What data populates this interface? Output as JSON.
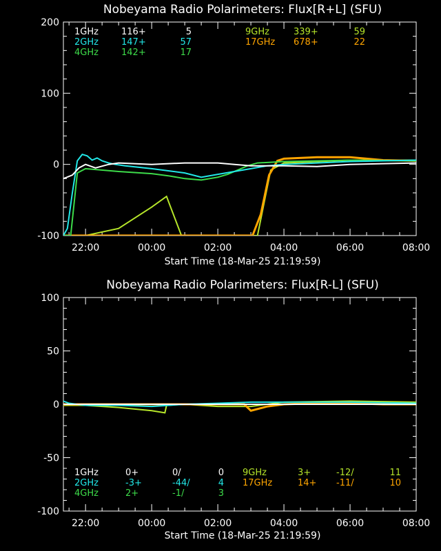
{
  "colors": {
    "f1ghz": "#ffffff",
    "f2ghz": "#22e8e8",
    "f4ghz": "#3ddc4a",
    "f9ghz": "#b6e62a",
    "f17ghz": "#ffa500",
    "axis": "#ffffff",
    "background": "#000000"
  },
  "chart_data": [
    {
      "type": "line",
      "title": "Nobeyama Radio Polarimeters: Flux[R+L] (SFU)",
      "xlabel": "Start Time (18-Mar-25 21:19:59)",
      "x_tick_labels": [
        "22:00",
        "00:00",
        "02:00",
        "04:00",
        "06:00",
        "08:00"
      ],
      "x_tick_hours": [
        22,
        24,
        26,
        28,
        30,
        32
      ],
      "xlim_hours": [
        21.33,
        32.0
      ],
      "y_ticks": [
        -100,
        0,
        100,
        200
      ],
      "y_tick_labels": [
        "-100",
        "0",
        "100",
        "200"
      ],
      "ylim": [
        -100,
        200
      ],
      "legend": [
        {
          "freq": "1GHz",
          "offset": "116+",
          "value": "5",
          "color": "#ffffff"
        },
        {
          "freq": "2GHz",
          "offset": "147+",
          "value": "57",
          "color": "#22e8e8"
        },
        {
          "freq": "4GHz",
          "offset": "142+",
          "value": "17",
          "color": "#3ddc4a"
        },
        {
          "freq": "9GHz",
          "offset": "339+",
          "value": "59",
          "color": "#b6e62a"
        },
        {
          "freq": "17GHz",
          "offset": "678+",
          "value": "22",
          "color": "#ffa500"
        }
      ],
      "series": [
        {
          "key": "f9ghz",
          "color": "#b6e62a",
          "x": [
            21.33,
            21.5,
            22.0,
            23.0,
            24.0,
            24.45,
            24.9,
            25.3,
            25.7,
            26.0,
            26.3,
            26.6,
            26.9,
            27.2,
            27.6,
            28.0,
            30.0,
            32.0
          ],
          "y": [
            -100,
            -100,
            -100,
            -90,
            -60,
            -45,
            -100,
            -100,
            -100,
            -100,
            -100,
            -100,
            -100,
            -100,
            -8,
            2,
            6,
            6
          ]
        },
        {
          "key": "f17ghz",
          "color": "#ffa500",
          "x": [
            21.33,
            26.7,
            27.05,
            27.3,
            27.55,
            27.8,
            28.0,
            29.0,
            30.0,
            31.0,
            32.0
          ],
          "y": [
            -100,
            -100,
            -100,
            -70,
            -15,
            5,
            8,
            10,
            10,
            6,
            5
          ]
        },
        {
          "key": "f4ghz",
          "color": "#3ddc4a",
          "x": [
            21.33,
            21.55,
            21.75,
            22.0,
            23.0,
            24.0,
            24.5,
            25.0,
            25.5,
            26.0,
            26.3,
            26.6,
            26.9,
            27.2,
            27.6,
            28.0,
            30.0,
            32.0
          ],
          "y": [
            -100,
            -100,
            -12,
            -6,
            -10,
            -13,
            -16,
            -20,
            -22,
            -18,
            -14,
            -8,
            -2,
            2,
            3,
            4,
            6,
            5
          ]
        },
        {
          "key": "f2ghz",
          "color": "#22e8e8",
          "x": [
            21.33,
            21.45,
            21.6,
            21.75,
            21.9,
            22.05,
            22.2,
            22.35,
            22.5,
            22.7,
            22.9,
            23.2,
            24.0,
            25.0,
            25.5,
            26.0,
            26.5,
            27.0,
            27.5,
            28.0,
            29.0,
            30.0,
            31.0,
            32.0
          ],
          "y": [
            -100,
            -90,
            -40,
            5,
            14,
            12,
            6,
            9,
            5,
            2,
            0,
            -2,
            -6,
            -12,
            -18,
            -14,
            -10,
            -6,
            -2,
            0,
            2,
            4,
            5,
            6
          ]
        },
        {
          "key": "f1ghz",
          "color": "#ffffff",
          "x": [
            21.33,
            21.6,
            21.8,
            22.0,
            22.3,
            22.7,
            23.0,
            24.0,
            25.0,
            26.0,
            26.5,
            27.0,
            28.0,
            29.0,
            30.0,
            31.0,
            32.0
          ],
          "y": [
            -20,
            -15,
            -5,
            0,
            -5,
            0,
            2,
            0,
            2,
            2,
            0,
            -2,
            -2,
            -3,
            0,
            1,
            2
          ]
        }
      ]
    },
    {
      "type": "line",
      "title": "Nobeyama Radio Polarimeters: Flux[R-L] (SFU)",
      "xlabel": "Start Time (18-Mar-25 21:19:59)",
      "x_tick_labels": [
        "22:00",
        "00:00",
        "02:00",
        "04:00",
        "06:00",
        "08:00"
      ],
      "x_tick_hours": [
        22,
        24,
        26,
        28,
        30,
        32
      ],
      "xlim_hours": [
        21.33,
        32.0
      ],
      "y_ticks": [
        -100,
        -50,
        0,
        50,
        100
      ],
      "y_tick_labels": [
        "-100",
        "-50",
        "0",
        "50",
        "100"
      ],
      "ylim": [
        -100,
        100
      ],
      "legend": [
        {
          "freq": "1GHz",
          "offset": "0+",
          "ratio": "0/",
          "value": "0",
          "color": "#ffffff"
        },
        {
          "freq": "2GHz",
          "offset": "-3+",
          "ratio": "-44/",
          "value": "4",
          "color": "#22e8e8"
        },
        {
          "freq": "4GHz",
          "offset": "2+",
          "ratio": "-1/",
          "value": "3",
          "color": "#3ddc4a"
        },
        {
          "freq": "9GHz",
          "offset": "3+",
          "ratio": "-12/",
          "value": "11",
          "color": "#b6e62a"
        },
        {
          "freq": "17GHz",
          "offset": "14+",
          "ratio": "-11/",
          "value": "10",
          "color": "#ffa500"
        }
      ],
      "series": [
        {
          "key": "f9ghz",
          "color": "#b6e62a",
          "x": [
            21.33,
            22.0,
            23.0,
            24.0,
            24.4,
            24.45,
            25.0,
            26.0,
            27.0,
            28.0,
            30.0,
            32.0
          ],
          "y": [
            -1,
            -1,
            -3,
            -6,
            -8,
            -1,
            0,
            -2,
            -2,
            2,
            3,
            2
          ]
        },
        {
          "key": "f17ghz",
          "color": "#ffa500",
          "x": [
            21.33,
            26.8,
            27.0,
            27.5,
            28.0,
            29.0,
            30.0,
            31.0,
            32.0
          ],
          "y": [
            0,
            0,
            -6,
            -2,
            0,
            1,
            1,
            0,
            0
          ]
        },
        {
          "key": "f4ghz",
          "color": "#3ddc4a",
          "x": [
            21.33,
            22.0,
            24.0,
            26.0,
            28.0,
            30.0,
            32.0
          ],
          "y": [
            0,
            0,
            0,
            0,
            0,
            0,
            0
          ]
        },
        {
          "key": "f2ghz",
          "color": "#22e8e8",
          "x": [
            21.33,
            21.5,
            22.0,
            23.0,
            24.0,
            25.0,
            26.0,
            27.0,
            28.0,
            30.0,
            32.0
          ],
          "y": [
            3,
            1,
            -1,
            -1,
            -2,
            0,
            1,
            2,
            2,
            2,
            1
          ]
        },
        {
          "key": "f1ghz",
          "color": "#ffffff",
          "x": [
            21.33,
            32.0
          ],
          "y": [
            0,
            0
          ]
        }
      ]
    }
  ]
}
